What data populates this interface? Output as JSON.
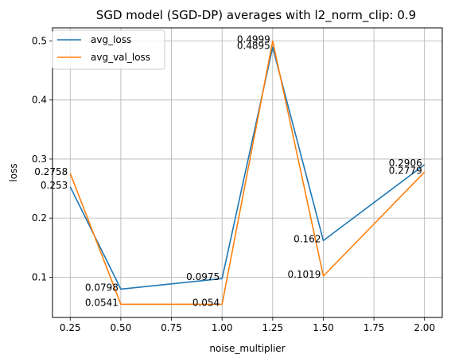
{
  "chart_data": {
    "type": "line",
    "title": "SGD model (SGD-DP) averages with l2_norm_clip: 0.9",
    "xlabel": "noise_multiplier",
    "ylabel": "loss",
    "x": [
      0.25,
      0.5,
      1.0,
      1.25,
      1.5,
      2.0
    ],
    "xticks": [
      "0.25",
      "0.50",
      "0.75",
      "1.00",
      "1.25",
      "1.50",
      "1.75",
      "2.00"
    ],
    "xtick_values": [
      0.25,
      0.5,
      0.75,
      1.0,
      1.25,
      1.5,
      1.75,
      2.0
    ],
    "yticks": [
      "0.1",
      "0.2",
      "0.3",
      "0.4",
      "0.5"
    ],
    "ytick_values": [
      0.1,
      0.2,
      0.3,
      0.4,
      0.5
    ],
    "xlim": [
      0.1625,
      2.0875
    ],
    "ylim": [
      0.0318,
      0.5222
    ],
    "grid": true,
    "legend_position": "top-left",
    "series": [
      {
        "name": "avg_loss",
        "color": "#1f77b4",
        "values": [
          0.253,
          0.0798,
          0.0975,
          0.4895,
          0.162,
          0.2906
        ],
        "labels": [
          "0.253",
          "0.0798",
          "0.0975",
          "0.4895",
          "0.162",
          "0.2906"
        ]
      },
      {
        "name": "avg_val_loss",
        "color": "#ff7f0e",
        "values": [
          0.2758,
          0.0541,
          0.054,
          0.4999,
          0.1019,
          0.2779
        ],
        "labels": [
          "0.2758",
          "0.0541",
          "0.054",
          "0.4999",
          "0.1019",
          "0.2779"
        ]
      }
    ]
  }
}
